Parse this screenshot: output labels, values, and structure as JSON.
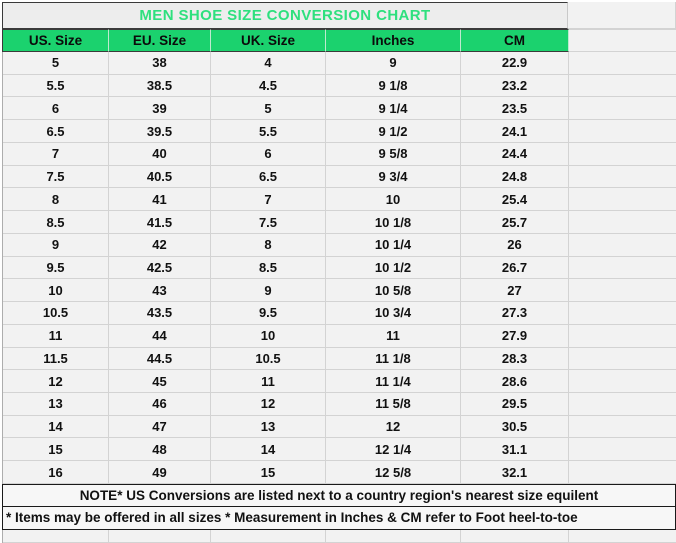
{
  "table": {
    "title": "MEN SHOE SIZE CONVERSION CHART",
    "columns": [
      "US. Size",
      "EU. Size",
      "UK. Size",
      "Inches",
      "CM"
    ],
    "rows": [
      [
        "5",
        "38",
        "4",
        "9",
        "22.9"
      ],
      [
        "5.5",
        "38.5",
        "4.5",
        "9 1/8",
        "23.2"
      ],
      [
        "6",
        "39",
        "5",
        "9 1/4",
        "23.5"
      ],
      [
        "6.5",
        "39.5",
        "5.5",
        "9 1/2",
        "24.1"
      ],
      [
        "7",
        "40",
        "6",
        "9 5/8",
        "24.4"
      ],
      [
        "7.5",
        "40.5",
        "6.5",
        "9 3/4",
        "24.8"
      ],
      [
        "8",
        "41",
        "7",
        "10",
        "25.4"
      ],
      [
        "8.5",
        "41.5",
        "7.5",
        "10 1/8",
        "25.7"
      ],
      [
        "9",
        "42",
        "8",
        "10 1/4",
        "26"
      ],
      [
        "9.5",
        "42.5",
        "8.5",
        "10 1/2",
        "26.7"
      ],
      [
        "10",
        "43",
        "9",
        "10 5/8",
        "27"
      ],
      [
        "10.5",
        "43.5",
        "9.5",
        "10 3/4",
        "27.3"
      ],
      [
        "11",
        "44",
        "10",
        "11",
        "27.9"
      ],
      [
        "11.5",
        "44.5",
        "10.5",
        "11 1/8",
        "28.3"
      ],
      [
        "12",
        "45",
        "11",
        "11 1/4",
        "28.6"
      ],
      [
        "13",
        "46",
        "12",
        "11 5/8",
        "29.5"
      ],
      [
        "14",
        "47",
        "13",
        "12",
        "30.5"
      ],
      [
        "15",
        "48",
        "14",
        "12 1/4",
        "31.1"
      ],
      [
        "16",
        "49",
        "15",
        "12 5/8",
        "32.1"
      ]
    ],
    "notes": [
      "NOTE* US Conversions are listed next to a country region's nearest size equilent",
      "* Items may be offered in all sizes * Measurement in Inches & CM refer to Foot heel-to-toe"
    ]
  },
  "colors": {
    "header_bg": "#1bd26e",
    "title_text": "#2ee07e",
    "cell_bg": "#f2f2f2",
    "grid_line": "#d3d3d3",
    "note_border": "#1a1a1a"
  }
}
